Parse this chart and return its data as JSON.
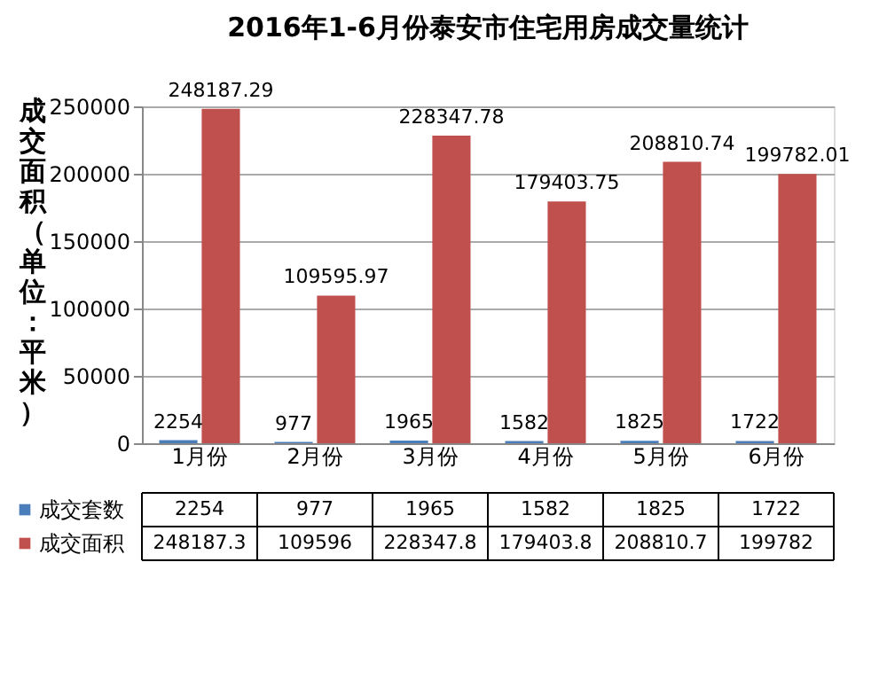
{
  "chart_data": {
    "type": "bar",
    "title": "2016年1-6月份泰安市住宅用房成交量统计",
    "ylabel": "成交面积（单位：平米）",
    "categories": [
      "1月份",
      "2月份",
      "3月份",
      "4月份",
      "5月份",
      "6月份"
    ],
    "series": [
      {
        "name": "成交套数",
        "color": "#4a7ebb",
        "values": [
          2254,
          977,
          1965,
          1582,
          1825,
          1722
        ],
        "value_labels": [
          "2254",
          "977",
          "1965",
          "1582",
          "1825",
          "1722"
        ]
      },
      {
        "name": "成交面积",
        "color": "#c0504d",
        "values": [
          248187.29,
          109595.97,
          228347.78,
          179403.75,
          208810.74,
          199782.01
        ]
      }
    ],
    "annotations": [
      "2254",
      "977",
      "1965",
      "1582",
      "1825",
      "1722",
      "248187.3",
      "109596",
      "228347.8",
      "179403.8",
      "208810.7",
      "199782"
    ],
    "ylim": [
      0,
      250000
    ],
    "yticks": [
      0,
      50000,
      100000,
      150000,
      200000,
      250000
    ],
    "grid": "y",
    "data_labels": true,
    "legend": "bottom"
  }
}
